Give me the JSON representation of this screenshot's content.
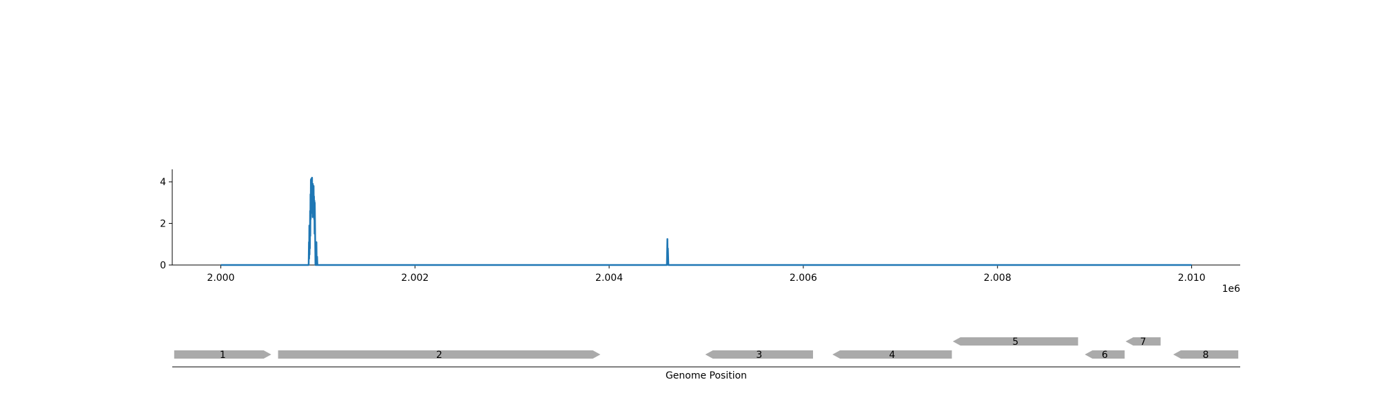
{
  "chart_data": [
    {
      "type": "line",
      "title": "",
      "xlabel": "",
      "ylabel": "",
      "x_offset_label": "1e6",
      "xlim": [
        1999500,
        2010500
      ],
      "ylim": [
        0,
        4.6
      ],
      "x_ticks": [
        2000000,
        2002000,
        2004000,
        2006000,
        2008000,
        2010000
      ],
      "x_tick_labels": [
        "2.000",
        "2.002",
        "2.004",
        "2.006",
        "2.008",
        "2.010"
      ],
      "y_ticks": [
        0,
        2,
        4
      ],
      "y_tick_labels": [
        "0",
        "2",
        "4"
      ],
      "grid": false,
      "color": "#1f77b4",
      "series": [
        {
          "x": [
            2000000,
            2000900,
            2000905,
            2000908,
            2000910,
            2000912,
            2000914,
            2000916,
            2000918,
            2000920,
            2000922,
            2000924,
            2000926,
            2000928,
            2000930,
            2000932,
            2000934,
            2000936,
            2000938,
            2000940,
            2000942,
            2000944,
            2000946,
            2000948,
            2000950,
            2000952,
            2000954,
            2000956,
            2000958,
            2000960,
            2000962,
            2000964,
            2000966,
            2000968,
            2000970,
            2000975,
            2000980,
            2000985,
            2000988,
            2000992,
            2000995,
            2001000,
            2004590,
            2004595,
            2004600,
            2004602,
            2004605,
            2004610,
            2010000
          ],
          "y": [
            0,
            0,
            0,
            1.1,
            0.3,
            1.9,
            0.5,
            1.8,
            0.8,
            2.6,
            1.4,
            3.4,
            2.2,
            4.1,
            3.0,
            4.15,
            2.5,
            4.0,
            3.2,
            4.2,
            2.8,
            3.6,
            2.3,
            3.9,
            2.7,
            3.5,
            2.4,
            3.8,
            2.6,
            3.3,
            2.2,
            3.1,
            1.5,
            3.0,
            2.2,
            0,
            0,
            1.1,
            0,
            0.4,
            0,
            0,
            0,
            0,
            1.25,
            0.5,
            0.8,
            0,
            0
          ]
        }
      ]
    },
    {
      "type": "gene-track",
      "xlabel": "Genome Position",
      "xlim": [
        1999500,
        2010500
      ],
      "genes": [
        {
          "label": "1",
          "start": 1999520,
          "end": 2000520,
          "strand": "+",
          "row": 0
        },
        {
          "label": "2",
          "start": 2000590,
          "end": 2003910,
          "strand": "+",
          "row": 0
        },
        {
          "label": "3",
          "start": 2004990,
          "end": 2006100,
          "strand": "-",
          "row": 0
        },
        {
          "label": "4",
          "start": 2006300,
          "end": 2007530,
          "strand": "-",
          "row": 0
        },
        {
          "label": "5",
          "start": 2007540,
          "end": 2008830,
          "strand": "-",
          "row": 1
        },
        {
          "label": "6",
          "start": 2008900,
          "end": 2009310,
          "strand": "-",
          "row": 0
        },
        {
          "label": "7",
          "start": 2009320,
          "end": 2009680,
          "strand": "-",
          "row": 1
        },
        {
          "label": "8",
          "start": 2009810,
          "end": 2010480,
          "strand": "-",
          "row": 0
        }
      ],
      "color": "#aaaaaa"
    }
  ]
}
